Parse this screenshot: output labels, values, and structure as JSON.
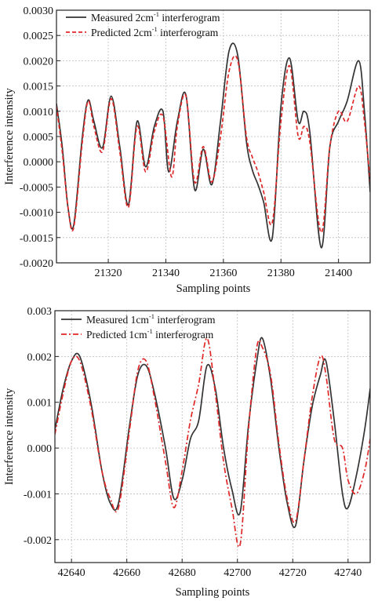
{
  "chart_data": [
    {
      "type": "line",
      "xlabel": "Sampling points",
      "ylabel": "Interference intensity",
      "xlim": [
        21302,
        21411
      ],
      "ylim": [
        -0.002,
        0.003
      ],
      "xticks": [
        21320,
        21340,
        21360,
        21380,
        21400
      ],
      "yticks": [
        -0.002,
        -0.0015,
        -0.001,
        -0.0005,
        0.0,
        0.0005,
        0.001,
        0.0015,
        0.002,
        0.0025,
        0.003
      ],
      "xtick_labels": [
        "21320",
        "21340",
        "21360",
        "21380",
        "21400"
      ],
      "ytick_labels": [
        "-0.0020",
        "-0.0015",
        "-0.0010",
        "-0.0005",
        "0.0000",
        "0.0005",
        "0.0010",
        "0.0015",
        "0.0020",
        "0.0025",
        "0.0030"
      ],
      "grid": true,
      "legend_position": "top-left",
      "legend": [
        {
          "pre": "Measured 2cm",
          "sup": "-1",
          "post": " interferogram"
        },
        {
          "pre": "Predicted 2cm",
          "sup": "-1",
          "post": " interferogram"
        }
      ],
      "series": [
        {
          "name": "Measured 2cm-1 interferogram",
          "color": "#333333",
          "style": "solid",
          "x": [
            21302,
            21304,
            21306,
            21308,
            21311,
            21313,
            21315,
            21318,
            21321,
            21324,
            21327,
            21330,
            21333,
            21336,
            21339,
            21341,
            21344,
            21347,
            21350,
            21353,
            21356,
            21359,
            21362,
            21365,
            21368,
            21370,
            21372,
            21374,
            21377,
            21380,
            21383,
            21386,
            21388,
            21390,
            21394,
            21397,
            21400,
            21403,
            21407,
            21409,
            21411
          ],
          "y": [
            0.00115,
            0.0003,
            -0.0009,
            -0.00125,
            0.0005,
            0.00122,
            0.0008,
            0.00028,
            0.0013,
            0.0003,
            -0.00085,
            0.0008,
            -0.0001,
            0.0007,
            0.001,
            -0.0002,
            0.0008,
            0.00132,
            -0.00055,
            0.00025,
            -0.00045,
            0.0008,
            0.0022,
            0.0021,
            0.0004,
            -0.00015,
            -0.00045,
            -0.0008,
            -0.0015,
            0.0011,
            0.00205,
            0.0008,
            0.001,
            0.0006,
            -0.0017,
            0.0003,
            0.0008,
            0.0012,
            0.002,
            0.001,
            -0.0006
          ]
        },
        {
          "name": "Predicted 2cm-1 interferogram",
          "color": "#e02828",
          "style": "dashed",
          "x": [
            21302,
            21304,
            21306,
            21308,
            21311,
            21313,
            21315,
            21318,
            21321,
            21324,
            21327,
            21330,
            21333,
            21336,
            21339,
            21342,
            21344,
            21347,
            21350,
            21353,
            21356,
            21359,
            21362,
            21365,
            21368,
            21370,
            21372,
            21374,
            21377,
            21380,
            21383,
            21386,
            21388,
            21390,
            21394,
            21397,
            21400,
            21403,
            21407,
            21409,
            21411
          ],
          "y": [
            0.0011,
            0.0002,
            -0.0009,
            -0.0013,
            0.0004,
            0.0012,
            0.0007,
            0.0002,
            0.00125,
            0.0002,
            -0.0009,
            0.0007,
            -0.0002,
            0.0006,
            0.0009,
            -0.0003,
            0.0007,
            0.0013,
            -0.0004,
            0.0003,
            -0.0004,
            0.0005,
            0.0018,
            0.002,
            0.0005,
            0.0001,
            -0.0002,
            -0.0006,
            -0.0012,
            0.0008,
            0.0019,
            0.0005,
            0.0007,
            0.0004,
            -0.0014,
            0.0003,
            0.001,
            0.0008,
            0.0015,
            0.0008,
            -0.0004
          ]
        }
      ]
    },
    {
      "type": "line",
      "xlabel": "Sampling points",
      "ylabel": "Interference intensity",
      "xlim": [
        42634,
        42748
      ],
      "ylim": [
        -0.0025,
        0.003
      ],
      "xticks": [
        42640,
        42660,
        42680,
        42700,
        42720,
        42740
      ],
      "yticks": [
        -0.002,
        -0.001,
        0.0,
        0.001,
        0.002,
        0.003
      ],
      "xtick_labels": [
        "42640",
        "42660",
        "42680",
        "42700",
        "42720",
        "42740"
      ],
      "ytick_labels": [
        "-0.002",
        "-0.001",
        "0.000",
        "0.001",
        "0.002",
        "0.003"
      ],
      "grid": true,
      "legend_position": "top-left",
      "legend": [
        {
          "pre": "Measured 1cm",
          "sup": "-1",
          "post": " interferogram"
        },
        {
          "pre": "Predicted 1cm",
          "sup": "-1",
          "post": " interferogram"
        }
      ],
      "series": [
        {
          "name": "Measured 1cm-1 interferogram",
          "color": "#333333",
          "style": "solid",
          "x": [
            42634,
            42637,
            42640,
            42643,
            42647,
            42651,
            42654,
            42657,
            42661,
            42664,
            42667,
            42670,
            42674,
            42677,
            42680,
            42683,
            42686,
            42689,
            42692,
            42695,
            42698,
            42701,
            42704,
            42707,
            42709,
            42712,
            42715,
            42718,
            42721,
            42724,
            42727,
            42730,
            42732,
            42735,
            42738,
            42740,
            42743,
            42746,
            42748
          ],
          "y": [
            0.0004,
            0.0013,
            0.0019,
            0.002,
            0.001,
            -0.0005,
            -0.0012,
            -0.0012,
            0.0005,
            0.0016,
            0.0018,
            0.0012,
            0.0,
            -0.0011,
            -0.0007,
            0.0002,
            0.0006,
            0.0018,
            0.0013,
            0.0,
            -0.0009,
            -0.0014,
            0.0005,
            0.0019,
            0.0024,
            0.0015,
            0.0,
            -0.0012,
            -0.0017,
            -0.0003,
            0.0009,
            0.0016,
            0.0019,
            0.0006,
            -0.001,
            -0.0013,
            -0.0006,
            0.0004,
            0.0013
          ]
        },
        {
          "name": "Predicted 1cm-1 interferogram",
          "color": "#e02828",
          "style": "dashdot",
          "x": [
            42634,
            42637,
            42640,
            42643,
            42647,
            42651,
            42654,
            42657,
            42661,
            42664,
            42667,
            42670,
            42674,
            42677,
            42680,
            42683,
            42686,
            42689,
            42692,
            42695,
            42698,
            42701,
            42704,
            42707,
            42709,
            42712,
            42715,
            42718,
            42721,
            42724,
            42727,
            42730,
            42732,
            42735,
            42738,
            42740,
            42743,
            42746,
            42748
          ],
          "y": [
            0.0003,
            0.0012,
            0.0019,
            0.0019,
            0.0009,
            -0.0005,
            -0.0011,
            -0.0013,
            0.0004,
            0.0017,
            0.0019,
            0.0011,
            -0.0003,
            -0.0013,
            -0.0005,
            0.0006,
            0.0014,
            0.0024,
            0.0012,
            -0.0003,
            -0.0013,
            -0.0021,
            0.0004,
            0.0022,
            0.0022,
            0.0016,
            0.0001,
            -0.0011,
            -0.0016,
            -0.0003,
            0.0011,
            0.002,
            0.0016,
            0.0002,
            0.0,
            -0.0007,
            -0.001,
            -0.0005,
            0.0002
          ]
        }
      ]
    }
  ]
}
